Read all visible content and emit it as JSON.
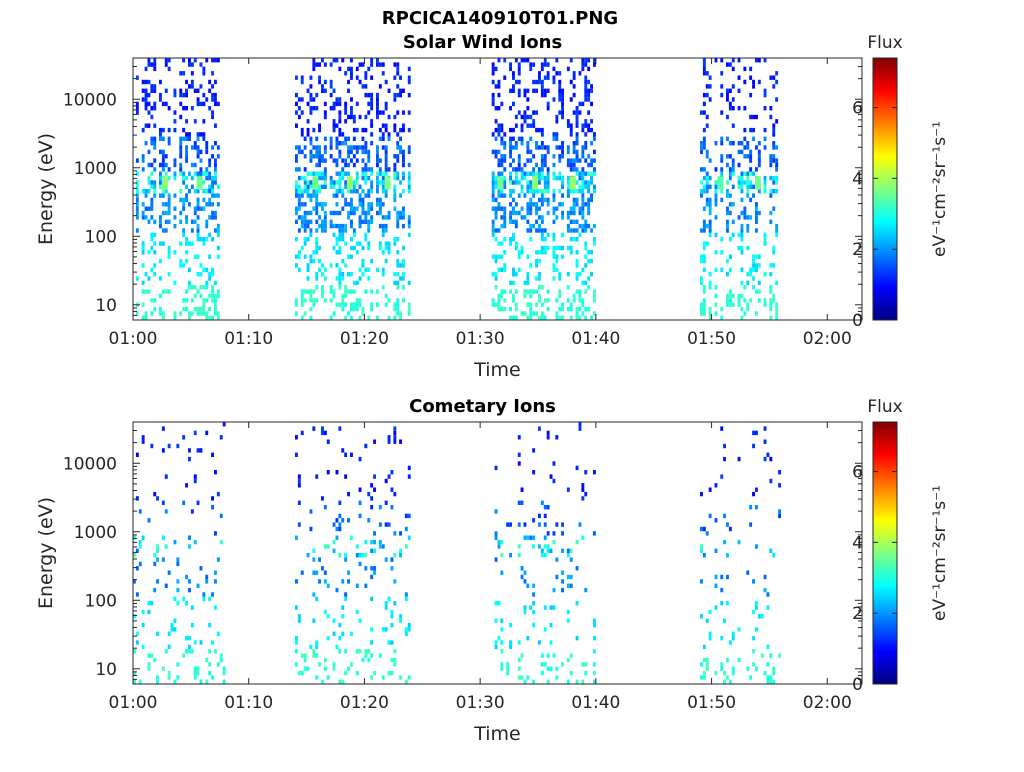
{
  "figure": {
    "title": "RPCICA140910T01.PNG"
  },
  "colormap": {
    "stops": [
      "#000080",
      "#0000ff",
      "#0080ff",
      "#00ffff",
      "#80ff80",
      "#ffff00",
      "#ff8000",
      "#ff0000",
      "#800000"
    ]
  },
  "chart_data": [
    {
      "type": "heatmap",
      "title": "Solar Wind Ions",
      "xlabel": "Time",
      "ylabel": "Energy (eV)",
      "xlim": [
        "01:00",
        "02:03"
      ],
      "xticks": [
        "01:00",
        "01:10",
        "01:20",
        "01:30",
        "01:40",
        "01:50",
        "02:00"
      ],
      "ylim": [
        6,
        40000
      ],
      "yscale": "log",
      "yticks": [
        10,
        100,
        1000,
        10000
      ],
      "ytick_labels": [
        "10",
        "100",
        "1000",
        "10000"
      ],
      "colorbar": {
        "label_top": "Flux",
        "unit": "eV⁻¹cm⁻²sr⁻¹s⁻¹",
        "range": [
          0,
          7.4
        ],
        "ticks": [
          "0",
          "2",
          "4",
          "6"
        ]
      },
      "grid": false,
      "scan_bursts": [
        {
          "start": "01:00",
          "end": "01:08",
          "density": 0.55
        },
        {
          "start": "01:14",
          "end": "01:24",
          "density": 0.6
        },
        {
          "start": "01:31",
          "end": "01:40",
          "density": 0.6
        },
        {
          "start": "01:49",
          "end": "01:56",
          "density": 0.5
        }
      ],
      "features": [
        {
          "label": "high-flux hot spots",
          "energy_eV": 600,
          "flux": 3.8
        },
        {
          "label": "low-energy bands",
          "energy_eV": [
            10,
            100
          ],
          "flux": 2.8
        }
      ]
    },
    {
      "type": "heatmap",
      "title": "Cometary Ions",
      "xlabel": "Time",
      "ylabel": "Energy (eV)",
      "xlim": [
        "01:00",
        "02:03"
      ],
      "xticks": [
        "01:00",
        "01:10",
        "01:20",
        "01:30",
        "01:40",
        "01:50",
        "02:00"
      ],
      "ylim": [
        6,
        40000
      ],
      "yscale": "log",
      "yticks": [
        10,
        100,
        1000,
        10000
      ],
      "ytick_labels": [
        "10",
        "100",
        "1000",
        "10000"
      ],
      "colorbar": {
        "label_top": "Flux",
        "unit": "eV⁻¹cm⁻²sr⁻¹s⁻¹",
        "range": [
          0,
          7.4
        ],
        "ticks": [
          "0",
          "2",
          "4",
          "6"
        ]
      },
      "grid": false,
      "scan_bursts": [
        {
          "start": "01:00",
          "end": "01:08",
          "density": 0.12
        },
        {
          "start": "01:14",
          "end": "01:24",
          "density": 0.14
        },
        {
          "start": "01:31",
          "end": "01:40",
          "density": 0.14
        },
        {
          "start": "01:49",
          "end": "01:56",
          "density": 0.12
        }
      ],
      "features": [
        {
          "label": "low-energy bands",
          "energy_eV": [
            10,
            100
          ],
          "flux": 3.0
        }
      ]
    }
  ]
}
